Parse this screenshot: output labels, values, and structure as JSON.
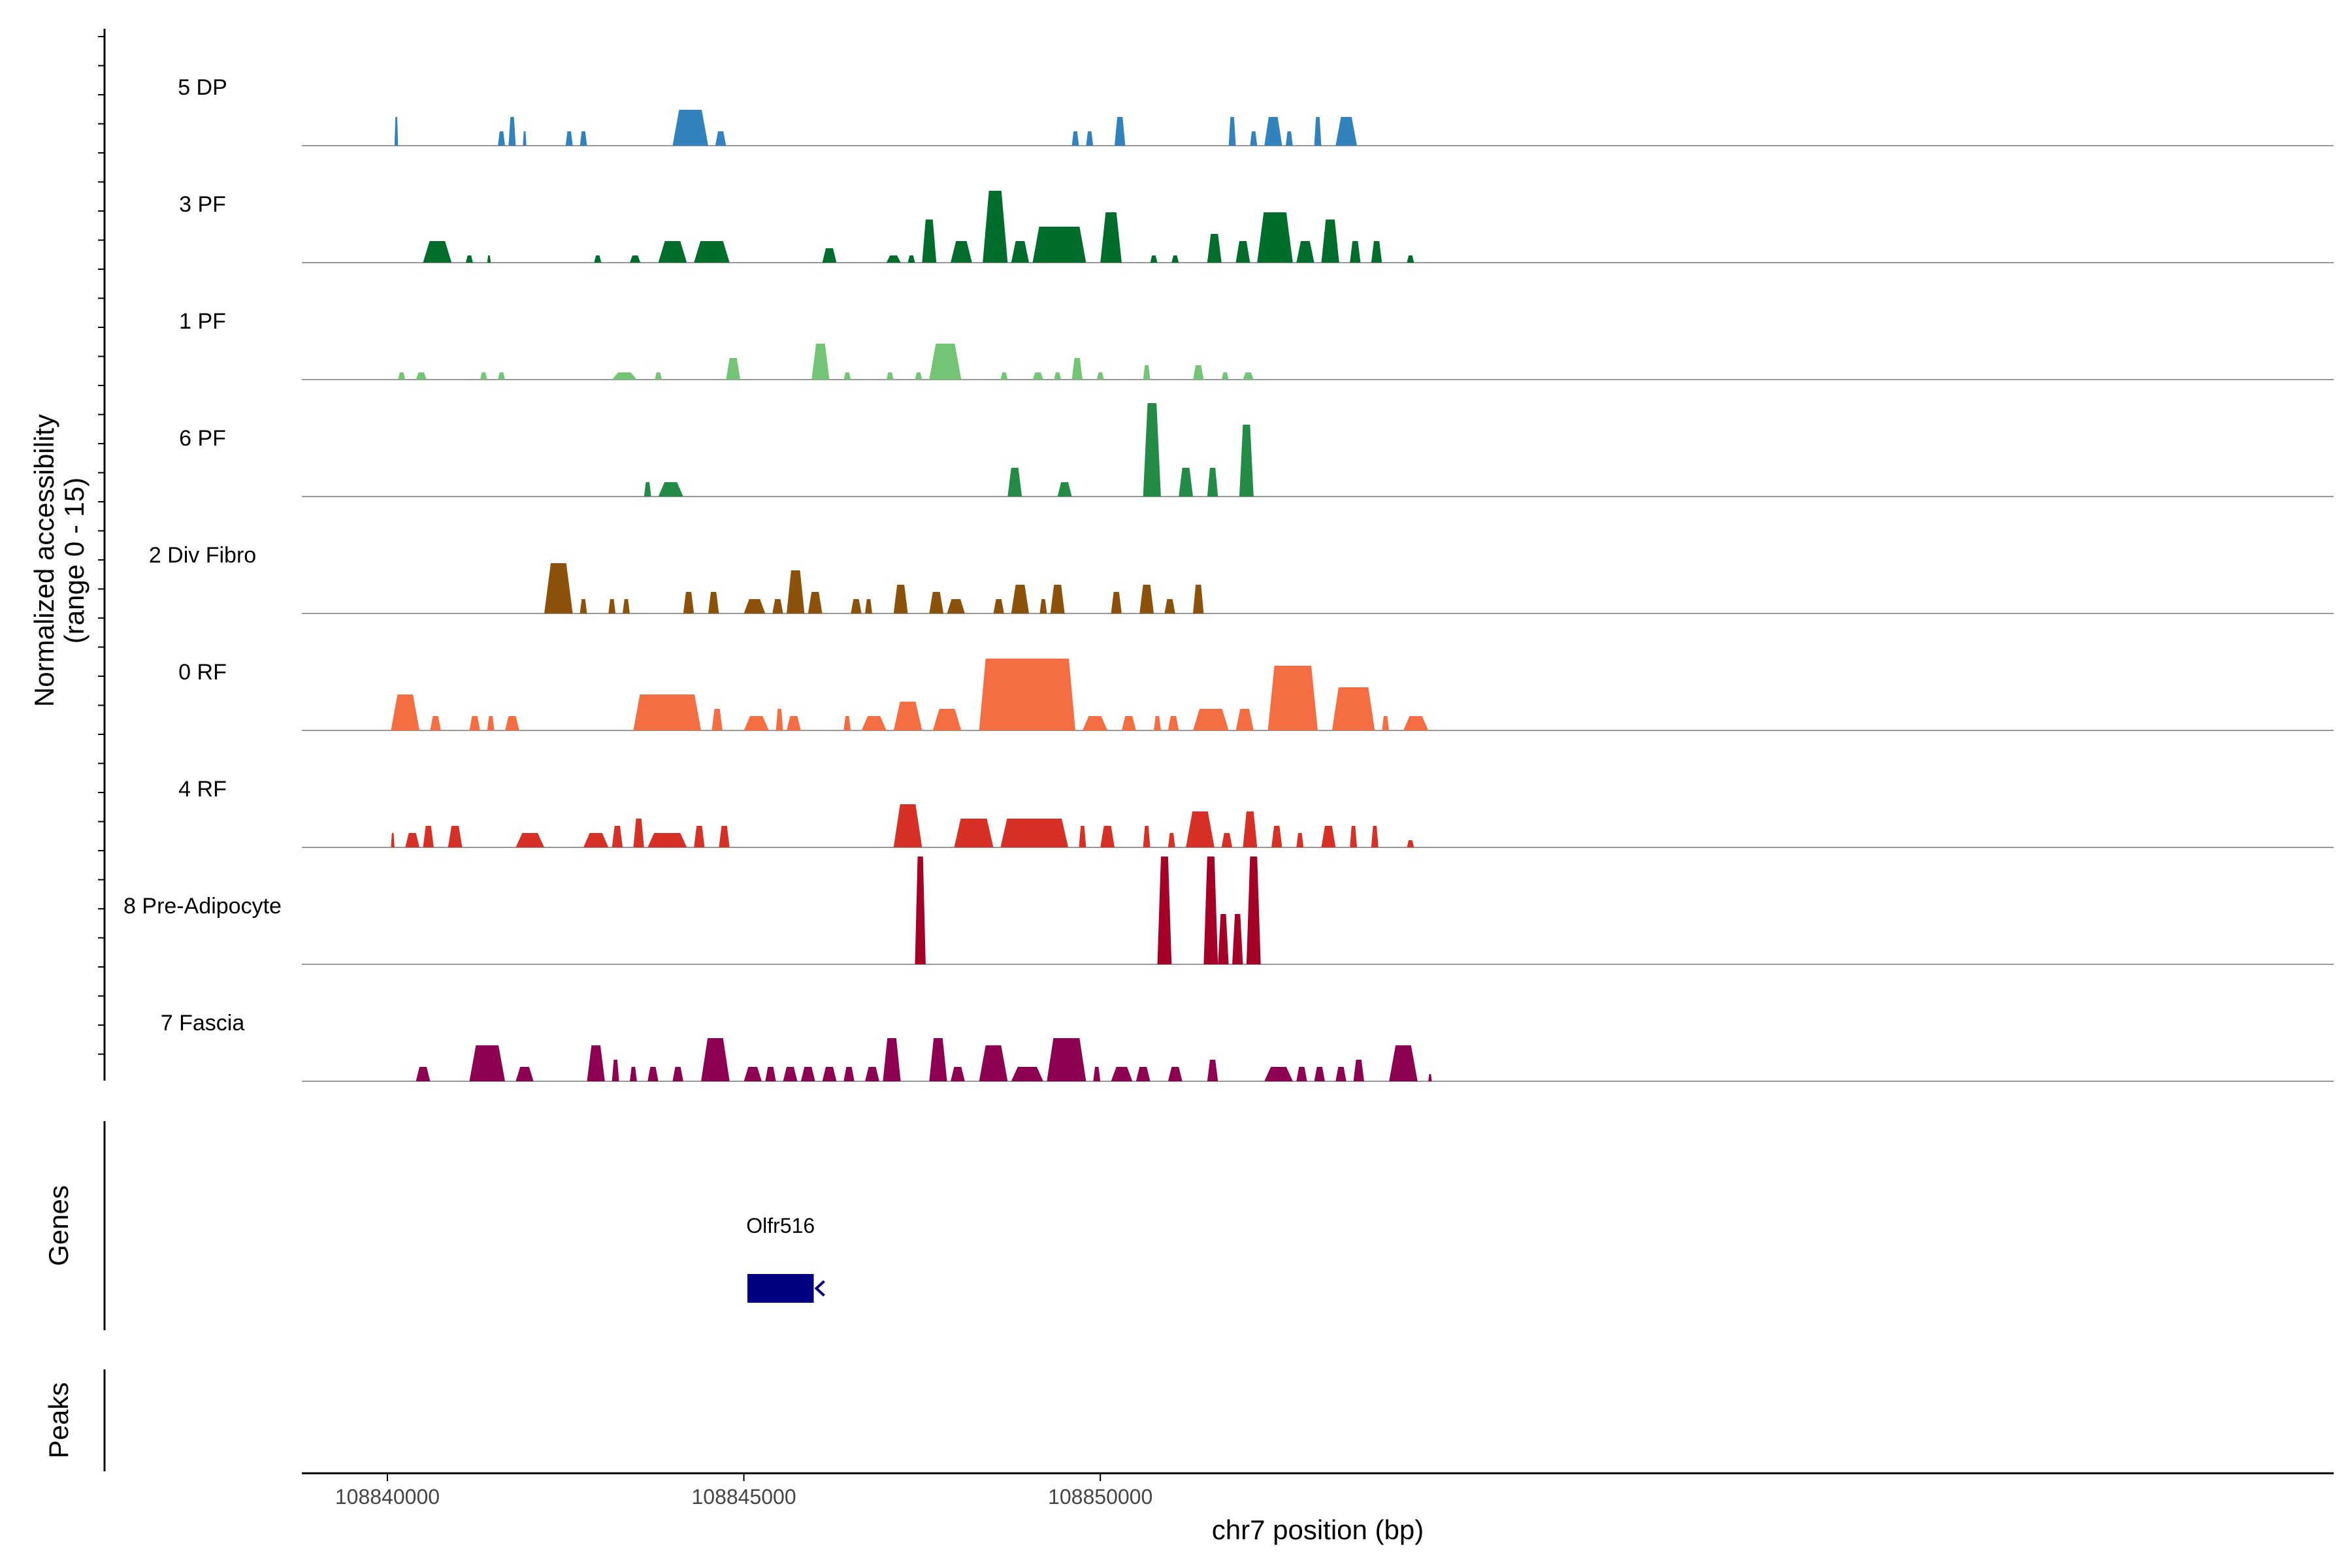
{
  "chart_data": {
    "type": "area",
    "ylabel_line1": "Normalized accessibility",
    "ylabel_line2": "(range 0 - 15)",
    "xlabel": "chr7 position (bp)",
    "xlim": [
      108838800,
      108867300
    ],
    "ylim": [
      0,
      15
    ],
    "x_ticks": [
      "108840000",
      "108845000",
      "108850000"
    ],
    "genes_label": "Genes",
    "peaks_label": "Peaks",
    "gene": {
      "name": "Olfr516",
      "start": 108845050,
      "end": 108845980,
      "strand": "-",
      "color": "#000080"
    },
    "tracks": [
      {
        "name": "5 DP",
        "color": "#3182BD",
        "peaks": [
          [
            108840100,
            108840150,
            4
          ],
          [
            108841550,
            108841650,
            2
          ],
          [
            108841700,
            108841800,
            4
          ],
          [
            108841900,
            108841950,
            2
          ],
          [
            108842500,
            108842600,
            2
          ],
          [
            108842700,
            108842800,
            2
          ],
          [
            108844000,
            108844500,
            5
          ],
          [
            108844600,
            108844750,
            2
          ],
          [
            108849600,
            108849700,
            2
          ],
          [
            108849800,
            108849900,
            2
          ],
          [
            108850200,
            108850350,
            4
          ],
          [
            108851800,
            108851900,
            4
          ],
          [
            108852100,
            108852200,
            2
          ],
          [
            108852300,
            108852550,
            4
          ],
          [
            108852600,
            108852700,
            2
          ],
          [
            108853000,
            108853100,
            4
          ],
          [
            108853300,
            108853600,
            4
          ]
        ]
      },
      {
        "name": "3 PF",
        "color": "#006D2C",
        "peaks": [
          [
            108840500,
            108840900,
            3
          ],
          [
            108841100,
            108841200,
            1
          ],
          [
            108841400,
            108841450,
            1
          ],
          [
            108842900,
            108843000,
            1
          ],
          [
            108843400,
            108843550,
            1
          ],
          [
            108843800,
            108844200,
            3
          ],
          [
            108844300,
            108844800,
            3
          ],
          [
            108846100,
            108846300,
            2
          ],
          [
            108847000,
            108847200,
            1
          ],
          [
            108847300,
            108847400,
            1
          ],
          [
            108847500,
            108847700,
            6
          ],
          [
            108847900,
            108848200,
            3
          ],
          [
            108848350,
            108848700,
            10
          ],
          [
            108848750,
            108849000,
            3
          ],
          [
            108849050,
            108849800,
            5
          ],
          [
            108850000,
            108850300,
            7
          ],
          [
            108850700,
            108850800,
            1
          ],
          [
            108851000,
            108851100,
            1
          ],
          [
            108851500,
            108851700,
            4
          ],
          [
            108851900,
            108852100,
            3
          ],
          [
            108852200,
            108852700,
            7
          ],
          [
            108852750,
            108853000,
            3
          ],
          [
            108853100,
            108853350,
            6
          ],
          [
            108853500,
            108853650,
            3
          ],
          [
            108853800,
            108853950,
            3
          ],
          [
            108854300,
            108854400,
            1
          ]
        ]
      },
      {
        "name": "1 PF",
        "color": "#74C476",
        "peaks": [
          [
            108840150,
            108840250,
            1
          ],
          [
            108840400,
            108840550,
            1
          ],
          [
            108841300,
            108841400,
            1
          ],
          [
            108841550,
            108841650,
            1
          ],
          [
            108843150,
            108843500,
            1
          ],
          [
            108843750,
            108843850,
            1
          ],
          [
            108844750,
            108844950,
            3
          ],
          [
            108845950,
            108846200,
            5
          ],
          [
            108846400,
            108846500,
            1
          ],
          [
            108847000,
            108847100,
            1
          ],
          [
            108847400,
            108847500,
            1
          ],
          [
            108847600,
            108848050,
            5
          ],
          [
            108848600,
            108848700,
            1
          ],
          [
            108849050,
            108849200,
            1
          ],
          [
            108849350,
            108849450,
            1
          ],
          [
            108849600,
            108849750,
            3
          ],
          [
            108849950,
            108850050,
            1
          ],
          [
            108850600,
            108850700,
            2
          ],
          [
            108851300,
            108851450,
            2
          ],
          [
            108851700,
            108851800,
            1
          ],
          [
            108852000,
            108852150,
            1
          ]
        ]
      },
      {
        "name": "6 PF",
        "color": "#238B45",
        "peaks": [
          [
            108843600,
            108843700,
            2
          ],
          [
            108843800,
            108844150,
            2
          ],
          [
            108848700,
            108848900,
            4
          ],
          [
            108849400,
            108849600,
            2
          ],
          [
            108850600,
            108850850,
            13
          ],
          [
            108851100,
            108851300,
            4
          ],
          [
            108851500,
            108851650,
            4
          ],
          [
            108851950,
            108852150,
            10
          ]
        ]
      },
      {
        "name": "2 Div Fibro",
        "color": "#8C510A",
        "peaks": [
          [
            108842200,
            108842600,
            7
          ],
          [
            108842700,
            108842800,
            2
          ],
          [
            108843100,
            108843200,
            2
          ],
          [
            108843300,
            108843400,
            2
          ],
          [
            108844150,
            108844300,
            3
          ],
          [
            108844500,
            108844650,
            3
          ],
          [
            108845000,
            108845300,
            2
          ],
          [
            108845400,
            108845550,
            2
          ],
          [
            108845600,
            108845850,
            6
          ],
          [
            108845900,
            108846100,
            3
          ],
          [
            108846500,
            108846650,
            2
          ],
          [
            108846700,
            108846800,
            2
          ],
          [
            108847100,
            108847300,
            4
          ],
          [
            108847600,
            108847800,
            3
          ],
          [
            108847850,
            108848100,
            2
          ],
          [
            108848500,
            108848650,
            2
          ],
          [
            108848750,
            108849000,
            4
          ],
          [
            108849150,
            108849250,
            2
          ],
          [
            108849300,
            108849500,
            4
          ],
          [
            108850150,
            108850300,
            3
          ],
          [
            108850550,
            108850750,
            4
          ],
          [
            108850900,
            108851050,
            2
          ],
          [
            108851300,
            108851450,
            4
          ]
        ]
      },
      {
        "name": "0 RF",
        "color": "#F46D43",
        "peaks": [
          [
            108840050,
            108840450,
            5
          ],
          [
            108840600,
            108840750,
            2
          ],
          [
            108841150,
            108841300,
            2
          ],
          [
            108841400,
            108841500,
            2
          ],
          [
            108841650,
            108841850,
            2
          ],
          [
            108843450,
            108844400,
            5
          ],
          [
            108844550,
            108844700,
            3
          ],
          [
            108845000,
            108845350,
            2
          ],
          [
            108845450,
            108845550,
            3
          ],
          [
            108845600,
            108845800,
            2
          ],
          [
            108846400,
            108846500,
            2
          ],
          [
            108846650,
            108847000,
            2
          ],
          [
            108847100,
            108847500,
            4
          ],
          [
            108847650,
            108848050,
            3
          ],
          [
            108848300,
            108849650,
            10
          ],
          [
            108849750,
            108850100,
            2
          ],
          [
            108850300,
            108850500,
            2
          ],
          [
            108850750,
            108850850,
            2
          ],
          [
            108850950,
            108851100,
            2
          ],
          [
            108851300,
            108851800,
            3
          ],
          [
            108851900,
            108852150,
            3
          ],
          [
            108852350,
            108853050,
            9
          ],
          [
            108853250,
            108853850,
            6
          ],
          [
            108853950,
            108854050,
            2
          ],
          [
            108854250,
            108854600,
            2
          ]
        ]
      },
      {
        "name": "4 RF",
        "color": "#D73027",
        "peaks": [
          [
            108840050,
            108840100,
            2
          ],
          [
            108840250,
            108840450,
            2
          ],
          [
            108840500,
            108840650,
            3
          ],
          [
            108840850,
            108841050,
            3
          ],
          [
            108841800,
            108842200,
            2
          ],
          [
            108842750,
            108843100,
            2
          ],
          [
            108843150,
            108843300,
            3
          ],
          [
            108843450,
            108843600,
            4
          ],
          [
            108843650,
            108844200,
            2
          ],
          [
            108844300,
            108844450,
            3
          ],
          [
            108844650,
            108844800,
            3
          ],
          [
            108847100,
            108847500,
            6
          ],
          [
            108847950,
            108848500,
            4
          ],
          [
            108848600,
            108849550,
            4
          ],
          [
            108849700,
            108849800,
            3
          ],
          [
            108850000,
            108850200,
            3
          ],
          [
            108850600,
            108850700,
            3
          ],
          [
            108850950,
            108851050,
            2
          ],
          [
            108851200,
            108851600,
            5
          ],
          [
            108851700,
            108851850,
            2
          ],
          [
            108852000,
            108852200,
            5
          ],
          [
            108852400,
            108852550,
            3
          ],
          [
            108852750,
            108852850,
            2
          ],
          [
            108853100,
            108853300,
            3
          ],
          [
            108853500,
            108853600,
            3
          ],
          [
            108853800,
            108853900,
            3
          ],
          [
            108854300,
            108854400,
            1
          ]
        ]
      },
      {
        "name": "8 Pre-Adipocyte",
        "color": "#A50026",
        "peaks": [
          [
            108847400,
            108847550,
            15
          ],
          [
            108850800,
            108851000,
            15
          ],
          [
            108851450,
            108851650,
            15
          ],
          [
            108851650,
            108851800,
            7
          ],
          [
            108851850,
            108852000,
            7
          ],
          [
            108852050,
            108852250,
            15
          ]
        ]
      },
      {
        "name": "7 Fascia",
        "color": "#8E0152",
        "peaks": [
          [
            108840400,
            108840600,
            2
          ],
          [
            108841150,
            108841650,
            5
          ],
          [
            108841800,
            108842050,
            2
          ],
          [
            108842800,
            108843050,
            5
          ],
          [
            108843150,
            108843250,
            3
          ],
          [
            108843400,
            108843500,
            2
          ],
          [
            108843650,
            108843800,
            2
          ],
          [
            108844000,
            108844150,
            2
          ],
          [
            108844400,
            108844800,
            6
          ],
          [
            108845000,
            108845250,
            2
          ],
          [
            108845300,
            108845450,
            2
          ],
          [
            108845550,
            108845750,
            2
          ],
          [
            108845800,
            108846000,
            2
          ],
          [
            108846100,
            108846300,
            2
          ],
          [
            108846400,
            108846550,
            2
          ],
          [
            108846700,
            108846900,
            2
          ],
          [
            108846950,
            108847200,
            6
          ],
          [
            108847600,
            108847850,
            6
          ],
          [
            108847900,
            108848100,
            2
          ],
          [
            108848300,
            108848700,
            5
          ],
          [
            108848750,
            108849200,
            2
          ],
          [
            108849250,
            108849800,
            6
          ],
          [
            108849900,
            108850000,
            2
          ],
          [
            108850150,
            108850450,
            2
          ],
          [
            108850500,
            108850700,
            2
          ],
          [
            108850950,
            108851150,
            2
          ],
          [
            108851500,
            108851650,
            3
          ],
          [
            108852300,
            108852700,
            2
          ],
          [
            108852750,
            108852900,
            2
          ],
          [
            108853000,
            108853150,
            2
          ],
          [
            108853300,
            108853450,
            2
          ],
          [
            108853550,
            108853700,
            3
          ],
          [
            108854050,
            108854450,
            5
          ],
          [
            108854600,
            108854650,
            1
          ]
        ]
      }
    ]
  }
}
